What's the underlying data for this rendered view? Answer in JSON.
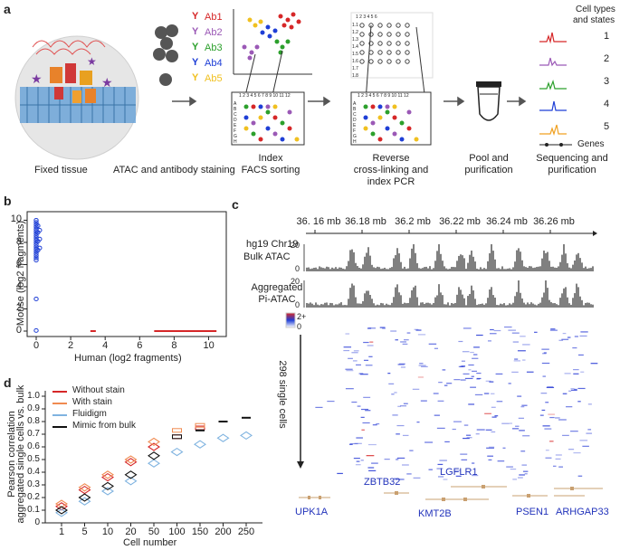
{
  "panels": {
    "a": "a",
    "b": "b",
    "c": "c",
    "d": "d"
  },
  "panel_a": {
    "antibodies": [
      {
        "label": "Ab1",
        "color": "#d62728"
      },
      {
        "label": "Ab2",
        "color": "#9b59b6"
      },
      {
        "label": "Ab3",
        "color": "#2ca02c"
      },
      {
        "label": "Ab4",
        "color": "#1f3fd6"
      },
      {
        "label": "Ab5",
        "color": "#f0c020"
      }
    ],
    "plate_cols": "1 2 3 4 5 6 7 8 9 10 11 12",
    "plate_rows": [
      "A",
      "B",
      "C",
      "D",
      "E",
      "F",
      "G",
      "H"
    ],
    "grid_header": "1 2 3 4 5 6",
    "grid_rows": [
      "1.1",
      "1.2",
      "1.3",
      "1.4",
      "1.5",
      "1.6",
      "1.7",
      "1.8"
    ],
    "steps": {
      "fixed": "Fixed tissue",
      "staining": "ATAC and antibody staining",
      "index1": "Index",
      "index2": "FACS sorting",
      "rev1": "Reverse",
      "rev2": "cross-linking and",
      "rev3": "index PCR",
      "pool1": "Pool and",
      "pool2": "purification",
      "seq1": "Sequencing and",
      "seq2": "purification"
    },
    "cell_types_title1": "Cell types",
    "cell_types_title2": "and states",
    "cell_types": [
      {
        "num": "1",
        "color": "#d62728"
      },
      {
        "num": "2",
        "color": "#9b59b6"
      },
      {
        "num": "3",
        "color": "#2ca02c"
      },
      {
        "num": "4",
        "color": "#1f3fd6"
      },
      {
        "num": "5",
        "color": "#f0a020"
      }
    ],
    "genes_label": "Genes"
  },
  "chart_data": [
    {
      "type": "scatter",
      "panel": "b",
      "xlabel": "Human (log2 fragments)",
      "ylabel": "Mouse (log2 fragments)",
      "xlim": [
        -0.5,
        11
      ],
      "ylim": [
        -0.5,
        10.5
      ],
      "xticks": [
        "0",
        "2",
        "4",
        "6",
        "8",
        "10"
      ],
      "yticks": [
        "0",
        "2",
        "4",
        "6",
        "8",
        "10"
      ],
      "series": [
        {
          "name": "mouse",
          "color": "#1f3fd6",
          "points": [
            [
              0,
              10
            ],
            [
              0,
              9.8
            ],
            [
              0,
              9.6
            ],
            [
              0,
              9.4
            ],
            [
              0,
              9.2
            ],
            [
              0,
              9
            ],
            [
              0,
              8.8
            ],
            [
              0,
              8.6
            ],
            [
              0,
              8.4
            ],
            [
              0,
              8.2
            ],
            [
              0,
              8
            ],
            [
              0,
              7.8
            ],
            [
              0,
              7.6
            ],
            [
              0,
              7.4
            ],
            [
              0,
              7.2
            ],
            [
              0,
              7
            ],
            [
              0,
              6.8
            ],
            [
              0,
              6.6
            ],
            [
              0,
              6.4
            ],
            [
              0.1,
              9.5
            ],
            [
              0.1,
              8.9
            ],
            [
              0.1,
              8.1
            ],
            [
              0.1,
              7.3
            ],
            [
              0.2,
              9.1
            ],
            [
              0.2,
              8.3
            ],
            [
              0.2,
              7.5
            ],
            [
              0,
              2.9
            ],
            [
              0,
              0.05
            ]
          ]
        },
        {
          "name": "human",
          "color": "#d62728",
          "points": [
            [
              3.3,
              0
            ],
            [
              7,
              0
            ],
            [
              7.3,
              0
            ],
            [
              7.6,
              0
            ],
            [
              7.9,
              0
            ],
            [
              8.2,
              0
            ],
            [
              8.5,
              0
            ],
            [
              8.8,
              0
            ],
            [
              9.1,
              0
            ],
            [
              9.4,
              0
            ],
            [
              9.7,
              0
            ],
            [
              10,
              0
            ],
            [
              10.3,
              0
            ]
          ]
        }
      ]
    },
    {
      "type": "line",
      "panel": "c",
      "title": "hg19 Chr19",
      "xaxis_ticks": [
        "36. 16 mb",
        "36.18 mb",
        "36.2 mb",
        "36.22 mb",
        "36.24 mb",
        "36.26 mb"
      ],
      "tracks": [
        {
          "name": "Bulk ATAC",
          "ymax": "20",
          "ymin": "0"
        },
        {
          "name": "Aggregated Pi-ATAC",
          "ymax": "20",
          "ymin": "0"
        }
      ],
      "heatmap_label": "298 single cells",
      "heatmap_scale_max": "2+",
      "heatmap_scale_min": "0",
      "genes": [
        "UPK1A",
        "ZBTB32",
        "LGFLR1",
        "KMT2B",
        "PSEN1",
        "ARHGAP33"
      ]
    },
    {
      "type": "scatter",
      "panel": "d",
      "xlabel": "Cell number",
      "ylabel1": "Pearson correlation",
      "ylabel2": "aggregated single cells vs. bulk",
      "categories": [
        "1",
        "5",
        "10",
        "20",
        "50",
        "100",
        "150",
        "200",
        "250"
      ],
      "yticks": [
        "0",
        "0.1",
        "0.2",
        "0.3",
        "0.4",
        "0.5",
        "0.6",
        "0.7",
        "0.8",
        "0.9",
        "1.0"
      ],
      "ylim": [
        0,
        1.0
      ],
      "series": [
        {
          "name": "Without stain",
          "color": "#d62728",
          "values": [
            0.13,
            0.26,
            0.36,
            0.48,
            0.6,
            0.68,
            0.75,
            null,
            null
          ]
        },
        {
          "name": "With stain",
          "color": "#f08a50",
          "values": [
            0.15,
            0.28,
            0.38,
            0.5,
            0.64,
            0.73,
            0.77,
            null,
            null
          ]
        },
        {
          "name": "Fluidigm",
          "color": "#7fb3e0",
          "values": [
            0.08,
            0.17,
            0.25,
            0.33,
            0.47,
            0.56,
            0.62,
            0.67,
            0.69
          ]
        },
        {
          "name": "Mimic from bulk",
          "color": "#111111",
          "values": [
            0.1,
            0.2,
            0.29,
            0.38,
            0.53,
            0.68,
            0.73,
            0.8,
            0.83
          ]
        }
      ]
    }
  ]
}
